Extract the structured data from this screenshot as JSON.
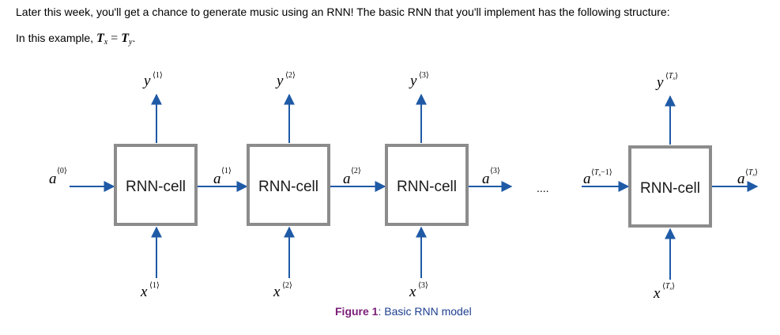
{
  "intro_text": "Later this week, you'll get a chance to generate music using an RNN! The basic RNN that you'll implement has the following structure:",
  "example": {
    "prefix": "In this example, ",
    "lhs": "T",
    "lhs_sub": "x",
    "equals": " = ",
    "rhs": "T",
    "rhs_sub": "y",
    "suffix": "."
  },
  "diagram": {
    "cell_label": "RNN-cell",
    "initial_activation": {
      "var": "a",
      "sup": "⟨0⟩"
    },
    "cells": [
      {
        "label": "RNN-cell",
        "output": {
          "var": "y",
          "sup": "⟨1⟩"
        },
        "input": {
          "var": "x",
          "sup": "⟨1⟩"
        },
        "activation": {
          "var": "a",
          "sup": "⟨1⟩"
        }
      },
      {
        "label": "RNN-cell",
        "output": {
          "var": "y",
          "sup": "⟨2⟩"
        },
        "input": {
          "var": "x",
          "sup": "⟨2⟩"
        },
        "activation": {
          "var": "a",
          "sup": "⟨2⟩"
        }
      },
      {
        "label": "RNN-cell",
        "output": {
          "var": "y",
          "sup": "⟨3⟩"
        },
        "input": {
          "var": "x",
          "sup": "⟨3⟩"
        },
        "activation": {
          "var": "a",
          "sup": "⟨3⟩"
        }
      },
      {
        "label": "RNN-cell",
        "output": {
          "var": "y",
          "sup_open": "⟨",
          "sup_T": "T",
          "sup_sub": "x",
          "sup_close": "⟩"
        },
        "input": {
          "var": "x",
          "sup_open": "⟨",
          "sup_T": "T",
          "sup_sub": "x",
          "sup_close": "⟩"
        },
        "activation": {
          "var": "a",
          "sup_open": "⟨",
          "sup_T": "T",
          "sup_sub": "x",
          "sup_close": "⟩"
        }
      }
    ],
    "prev_activation": {
      "var": "a",
      "sup_open": "⟨",
      "sup_T": "T",
      "sup_sub": "x",
      "sup_tail": "−1",
      "sup_close": "⟩"
    },
    "ellipsis": "....",
    "colors": {
      "arrow": "#1f5aa6",
      "box_border": "#8c8c8c",
      "caption_label": "#7b1e77",
      "caption_text": "#1d3f8f"
    }
  },
  "caption": {
    "label": "Figure 1",
    "text": ": Basic RNN model"
  }
}
